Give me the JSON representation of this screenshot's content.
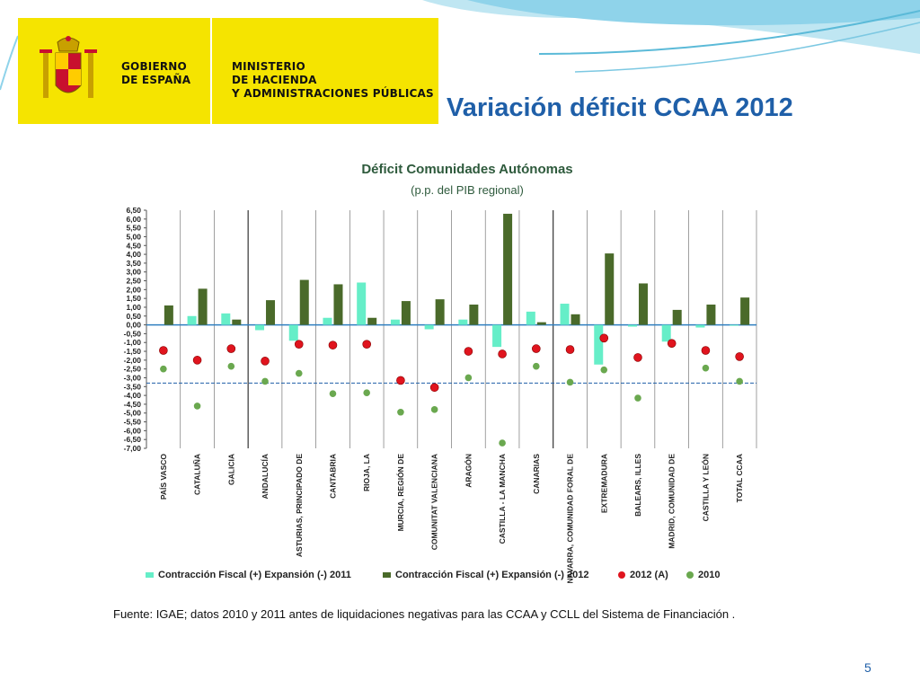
{
  "header": {
    "gov_line1": "GOBIERNO",
    "gov_line2": "DE ESPAÑA",
    "ministry_line1": "MINISTERIO",
    "ministry_line2": "DE HACIENDA",
    "ministry_line3": "Y ADMINISTRACIONES PÚBLICAS"
  },
  "slide_title": "Variación déficit CCAA 2012",
  "source_note": "Fuente: IGAE; datos 2010 y 2011 antes de liquidaciones negativas para las CCAA y CCLL del Sistema de Financiación .",
  "page_number": "5",
  "colors": {
    "title_blue": "#1f5fa8",
    "logo_yellow": "#f5e400",
    "series_2011": "#66eec8",
    "series_2012": "#4a6a2a",
    "dot_2012A": "#e0141e",
    "dot_2010": "#6aa84f",
    "reference_line": "#1f5fa8"
  },
  "chart_data": {
    "type": "bar",
    "title": "Déficit Comunidades Autónomas",
    "subtitle": "(p.p.  del PIB regional)",
    "categories": [
      "PAÍS VASCO",
      "CATALUÑA",
      "GALICIA",
      "ANDALUCÍA",
      "ASTURIAS, PRINCIPADO DE",
      "CANTABRIA",
      "RIOJA, LA",
      "MURCIA, REGIÓN DE",
      "COMUNITAT VALENCIANA",
      "ARAGÓN",
      "CASTILLA - LA MANCHA",
      "CANARIAS",
      "NAVARRA, COMUNIDAD FORAL DE",
      "EXTREMADURA",
      "BALEARS, ILLES",
      "MADRID, COMUNIDAD DE",
      "CASTILLA Y LEÓN",
      "TOTAL CCAA"
    ],
    "ylim": [
      -7.0,
      6.5
    ],
    "ytick_labels": [
      "6,50",
      "6,00",
      "5,50",
      "5,00",
      "4,50",
      "4,00",
      "3,50",
      "3,00",
      "2,50",
      "2,00",
      "1,50",
      "1,00",
      "0,50",
      "0,00",
      "-0,50",
      "-1,00",
      "-1,50",
      "-2,00",
      "-2,50",
      "-3,00",
      "-3,50",
      "-4,00",
      "-4,50",
      "-5,00",
      "-5,50",
      "-6,00",
      "-6,50",
      "-7,00"
    ],
    "reference_line_value": -3.3,
    "series": [
      {
        "name": "Contracción Fiscal (+) Expansión (-) 2011",
        "kind": "bar",
        "values": [
          0.0,
          0.5,
          0.65,
          -0.3,
          -0.9,
          0.4,
          2.4,
          0.3,
          -0.25,
          0.3,
          -1.25,
          0.75,
          1.2,
          -2.25,
          -0.1,
          -0.95,
          -0.15,
          -0.05
        ]
      },
      {
        "name": "Contracción Fiscal (+) Expansión (-) 2012",
        "kind": "bar",
        "values": [
          1.1,
          2.05,
          0.3,
          1.4,
          2.55,
          2.3,
          0.4,
          1.35,
          1.45,
          1.15,
          6.3,
          0.15,
          0.6,
          4.05,
          2.35,
          0.85,
          1.15,
          1.55
        ]
      },
      {
        "name": "2012 (A)",
        "kind": "dot",
        "values": [
          -1.45,
          -2.0,
          -1.35,
          -2.05,
          -1.1,
          -1.15,
          -1.1,
          -3.15,
          -3.55,
          -1.5,
          -1.65,
          -1.35,
          -1.4,
          -0.75,
          -1.85,
          -1.05,
          -1.45,
          -1.8
        ]
      },
      {
        "name": "2010",
        "kind": "dot",
        "values": [
          -2.5,
          -4.6,
          -2.35,
          -3.2,
          -2.75,
          -3.9,
          -3.85,
          -4.95,
          -4.8,
          -3.0,
          -6.7,
          -2.35,
          -3.25,
          -2.55,
          -4.15,
          -1.1,
          -2.45,
          -3.2
        ]
      }
    ],
    "legend_position": "bottom"
  }
}
